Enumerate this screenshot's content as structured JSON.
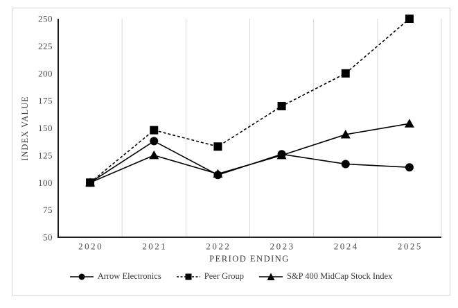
{
  "figure": {
    "background": "#ffffff",
    "border_color": "#d5d5d5"
  },
  "chart_data": {
    "type": "line",
    "title": "",
    "xlabel": "PERIOD ENDING",
    "ylabel": "INDEX VALUE",
    "categories": [
      "2020",
      "2021",
      "2022",
      "2023",
      "2024",
      "2025"
    ],
    "ylim": [
      50,
      250
    ],
    "ytick_step": 25,
    "grid": "vertical category boundaries only",
    "legend_position": "bottom",
    "axis_color": "#000000",
    "gridline_color": "#d9d9d9",
    "tick_label_color": "#4a4a4a",
    "axis_title_color": "#3a3a3a",
    "series": [
      {
        "name": "Arrow Electronics",
        "marker": "circle",
        "line_style": "solid",
        "color": "#000000",
        "values": [
          100,
          138,
          107,
          126,
          117,
          114
        ]
      },
      {
        "name": "Peer Group",
        "marker": "square",
        "line_style": "dashed",
        "color": "#000000",
        "values": [
          100,
          148,
          133,
          170,
          200,
          250
        ]
      },
      {
        "name": "S&P 400 MidCap Stock Index",
        "marker": "triangle",
        "line_style": "solid",
        "color": "#000000",
        "values": [
          100,
          125,
          108,
          125,
          144,
          154
        ]
      }
    ]
  }
}
